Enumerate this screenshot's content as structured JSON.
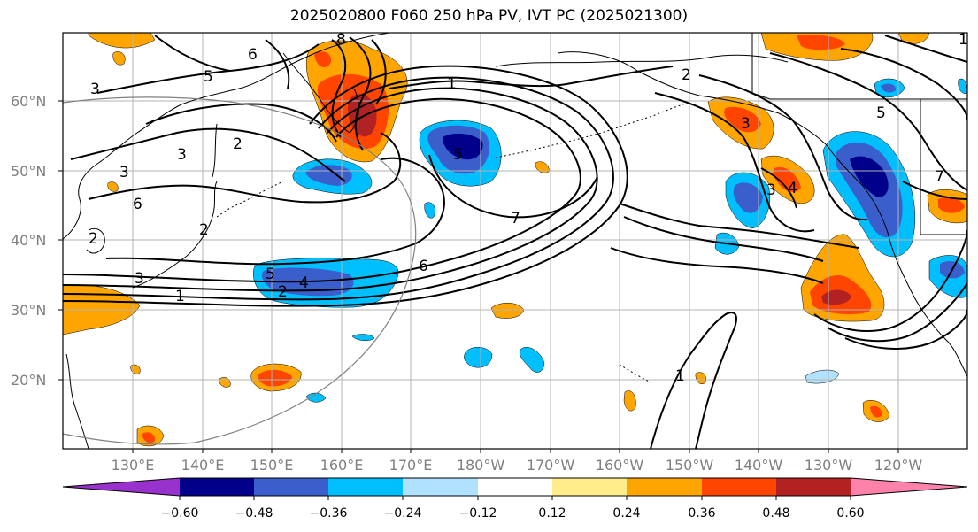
{
  "title": "2025020800 F060 250 hPa PV, IVT PC (2025021300)",
  "lat_labels": [
    "60°N",
    "50°N",
    "40°N",
    "30°N",
    "20°N"
  ],
  "lon_labels": [
    "130°E",
    "140°E",
    "150°E",
    "160°E",
    "170°E",
    "180°W",
    "170°W",
    "160°W",
    "150°W",
    "140°W",
    "130°W",
    "120°W"
  ],
  "colorbar": {
    "labels": [
      "−0.60",
      "−0.48",
      "−0.36",
      "−0.24",
      "−0.12",
      "0.12",
      "0.24",
      "0.36",
      "0.48",
      "0.60"
    ],
    "colors": [
      "#9932cc",
      "#00008b",
      "#3a5fcd",
      "#00bfff",
      "#b0e2ff",
      "#ffffff",
      "#ffec8b",
      "#ffa500",
      "#ff4500",
      "#b22222",
      "#ff82ab"
    ]
  },
  "contour_labels": [
    "3",
    "5",
    "6",
    "8",
    "2",
    "1",
    "2",
    "3",
    "3",
    "6",
    "2",
    "2",
    "3",
    "5",
    "4",
    "5",
    "7",
    "6",
    "1",
    "2",
    "3",
    "4",
    "3",
    "5",
    "7",
    "1",
    "1"
  ],
  "fill_colors": {
    "orange_light": "#ffec8b",
    "orange": "#ffa500",
    "red_orange": "#ff4500",
    "dark_red": "#b22222",
    "navy": "#00008b",
    "royal_blue": "#3a5fcd",
    "sky_blue": "#00bfff",
    "light_blue": "#b0e2ff"
  }
}
